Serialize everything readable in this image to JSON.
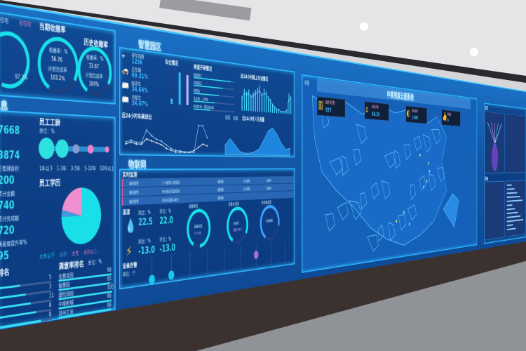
{
  "colors": {
    "screen": "#1458a8",
    "accent": "#35e0f0",
    "border": "#2fb8ff",
    "pink": "#f07fc8",
    "yellow": "#f5d23a"
  },
  "left": {
    "legend": [
      "住宅",
      "非住宅"
    ],
    "collection_title": "当期收缴率",
    "history_title": "历史收缴率",
    "gauges": [
      {
        "value": "97.2%",
        "level": 0.97
      },
      {
        "label1": "收缴率：%",
        "value1": "56.76",
        "label2": "计划完成率",
        "value2": "103.2%",
        "level": 0.75
      },
      {
        "label1": "收缴率：%",
        "value1": "33.67",
        "label2": "计划完成率",
        "value2": "100%",
        "level": 0.75
      }
    ],
    "section_title": "息",
    "stats": [
      "7668",
      "3874",
      "200",
      "740",
      "720",
      "95"
    ],
    "stat_labels": [
      "",
      "",
      "方管理面积",
      "累计金额",
      "累计完成额",
      "满意度提升率%"
    ],
    "tenure_title": "员工工龄",
    "tenure_unit": "单位：%",
    "tenure_bubbles": [
      {
        "label": "1年以下",
        "color": "#2fe0e0",
        "size": 1.0
      },
      {
        "label": "1-3年",
        "color": "#2fe0e0",
        "size": 0.85
      },
      {
        "label": "3-5年",
        "color": "#8a9ad0",
        "size": 0.45
      },
      {
        "label": "5-10年",
        "color": "#f07fc8",
        "size": 0.45
      },
      {
        "label": "10年以上",
        "color": "#f07fc8",
        "size": 0.32
      }
    ],
    "edu_title": "员工学历",
    "edu_pie": [
      {
        "label": "大专以下",
        "value": 75,
        "color": "#19e0e8"
      },
      {
        "label": "本科",
        "value": 4,
        "color": "#3f9be0"
      },
      {
        "label": "大专",
        "value": 21,
        "color": "#f08fd0"
      },
      {
        "label": "本科以上",
        "value": 0,
        "color": "#e070b0"
      }
    ],
    "rank_title": "排名",
    "rank_values": [
      "5",
      "3",
      "11",
      "8",
      "8"
    ],
    "satisfaction_title": "满意率排名",
    "satisfaction_unit": "单位：%",
    "satisfaction_items": [
      {
        "label": "金鼎花园",
        "value": "98"
      },
      {
        "label": "御景园",
        "value": "95"
      },
      {
        "label": "碧桂园园",
        "value": "100"
      },
      {
        "label": "中顺新城",
        "value": "98"
      },
      {
        "label": "苏州工业",
        "value": "98"
      }
    ]
  },
  "park": {
    "title": "智慧园区",
    "metrics": [
      {
        "icon": "location-icon",
        "label": "停车场数",
        "value": "1256"
      },
      {
        "icon": "car-icon",
        "label": "总车辆",
        "value": "69.31%"
      },
      {
        "icon": "bus-icon",
        "label": "临停车",
        "value": "34.64%"
      },
      {
        "icon": "bus-icon",
        "label": "月租车",
        "value": "34.67%"
      }
    ],
    "parking_title": "车位情况",
    "parking_bars": [
      0.15,
      0.9,
      0.85
    ],
    "gate_title": "闸道开闸情况",
    "gate_items": [
      {
        "label": "臻园路口",
        "level": 0.9
      },
      {
        "label": "碧园路口",
        "level": 0.7
      },
      {
        "label": "西南站",
        "level": 0.6
      },
      {
        "label": "东北角、三号岗",
        "level": 0.5
      },
      {
        "label": "新城车场、南区停车场",
        "level": 0.4
      }
    ],
    "traffic_title": "近24小时路上车流情况",
    "traffic_values": [
      6,
      9,
      8,
      9,
      7,
      8,
      9,
      10,
      11,
      8,
      10,
      9,
      7,
      6,
      4,
      3,
      2,
      2,
      1,
      1,
      1,
      2,
      9,
      8
    ],
    "vehicle_title": "近24小时车辆进出",
    "vehicle_in": [
      3,
      3.5,
      3,
      3,
      6.5,
      5,
      4,
      3.5,
      2.5,
      1.5,
      1,
      0.8,
      0.5,
      0.5,
      0.5,
      8.5,
      8.5,
      5
    ],
    "vehicle_out": [
      2.5,
      3,
      2.5,
      2.5,
      4,
      3.5,
      3,
      2.5,
      1.5,
      1,
      0.5,
      0.5,
      0.5,
      0.5,
      1,
      2,
      3,
      2.5
    ],
    "people_legend": [
      "进园",
      "出园"
    ],
    "people_title": "近24小时人行流量",
    "people_values": [
      3,
      5,
      3,
      1,
      0.5,
      0.5,
      1,
      2,
      5,
      8,
      9,
      7,
      4,
      2,
      2.5
    ]
  },
  "iot": {
    "title": "物联网",
    "table_title": "实时监测",
    "table_rows": [
      [
        "烟感报警",
        "广州紫荆小区栋层",
        "烟感器",
        "火灾报警",
        "处理中"
      ],
      [
        "烟感报警",
        "杭州西溪花园栋层",
        "烟感器",
        "火灾报警",
        "处理中"
      ],
      [
        "烟感报警",
        "紫金花园栋2单元",
        "烟感器",
        "",
        ""
      ]
    ],
    "temp_label": "温湿",
    "temp_items": [
      {
        "label": "同比：%",
        "value": "22.5"
      },
      {
        "label": "环比：%",
        "value": "22.0"
      }
    ],
    "power_items": [
      {
        "label": "同比：%",
        "value": "-13.0"
      },
      {
        "label": "环比：%",
        "value": "-13.0"
      }
    ],
    "gauges": [
      {
        "title": "设备情况",
        "label": "设备总数",
        "value": "1171台",
        "level": 0.9
      },
      {
        "title": "设备在线率",
        "label": "在线率",
        "value": "在线 88%",
        "level": 0.75
      },
      {
        "title": "电池能量率",
        "label": "电池能量",
        "value": "",
        "level": 0.7
      }
    ],
    "alarm_title": "设备告警",
    "alarm_unit": "单位：个"
  },
  "map": {
    "region_label": "中国",
    "title": "中奥到家云图系统",
    "cards": [
      {
        "icon": "building-icon",
        "label": "服务项目数",
        "value": "837"
      },
      {
        "icon": "house-icon",
        "label": "服务户数",
        "value": "66.29"
      },
      {
        "icon": "area-icon",
        "label": "服务面积",
        "value": "1000"
      },
      {
        "icon": "thumb-icon",
        "label": "满意度",
        "value": "0"
      }
    ]
  },
  "right": {
    "titles": [
      "总览",
      "设备"
    ]
  }
}
